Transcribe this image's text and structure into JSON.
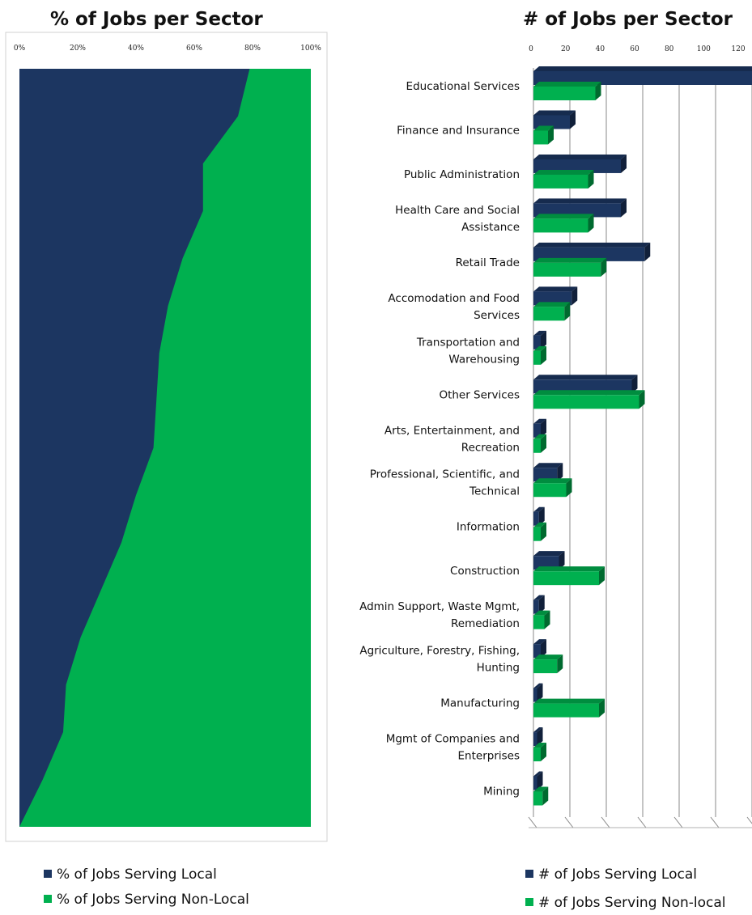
{
  "chart_data": [
    {
      "type": "area",
      "title": "% of Jobs per Sector",
      "orientation": "horizontal-stacked-100",
      "x_ticks": [
        "0%",
        "20%",
        "40%",
        "60%",
        "80%",
        "100%"
      ],
      "xlim": [
        0,
        100
      ],
      "categories": [
        "Educational Services",
        "Finance and Insurance",
        "Public Administration",
        "Health Care and Social Assistance",
        "Retail Trade",
        "Accomodation and Food Services",
        "Transportation and Warehousing",
        "Other Services",
        "Arts, Entertainment, and Recreation",
        "Professional, Scientific, and Technical",
        "Information",
        "Construction",
        "Admin Support, Waste Mgmt, Remediation",
        "Agriculture, Forestry, Fishing, Hunting",
        "Manufacturing",
        "Mgmt of Companies and Enterprises",
        "Mining"
      ],
      "series": [
        {
          "name": "% of Jobs Serving Local",
          "color": "#1c3661",
          "values": [
            79,
            75,
            63,
            63,
            56,
            51,
            48,
            47,
            46,
            40,
            35,
            28,
            21,
            16,
            15,
            8,
            0
          ]
        },
        {
          "name": "% of Jobs Serving Non-Local",
          "color": "#00b04f",
          "values": [
            21,
            25,
            37,
            37,
            44,
            49,
            52,
            53,
            54,
            60,
            65,
            72,
            79,
            84,
            85,
            92,
            100
          ]
        }
      ],
      "legend": "bottom"
    },
    {
      "type": "bar",
      "title": "# of Jobs per Sector",
      "orientation": "horizontal",
      "x_ticks": [
        "0",
        "20",
        "40",
        "60",
        "80",
        "100",
        "120"
      ],
      "xlim": [
        0,
        120
      ],
      "grid": true,
      "categories": [
        "Educational Services",
        "Finance and Insurance",
        "Public Administration",
        "Health Care and Social|Assistance",
        "Retail Trade",
        "Accomodation and Food|Services",
        "Transportation and|Warehousing",
        "Other Services",
        "Arts, Entertainment, and|Recreation",
        "Professional, Scientific, and|Technical",
        "Information",
        "Construction",
        "Admin Support, Waste Mgmt,|Remediation",
        "Agriculture, Forestry, Fishing,|Hunting",
        "Manufacturing",
        "Mgmt of Companies and|Enterprises",
        "Mining"
      ],
      "series": [
        {
          "name": "# of Jobs Serving Local",
          "color": "#1c3661",
          "values": [
            122,
            20,
            48,
            48,
            61,
            21,
            4,
            54,
            4,
            13,
            3,
            14,
            3,
            4,
            2,
            2,
            2
          ]
        },
        {
          "name": "# of Jobs Serving Non-local",
          "color": "#00b04f",
          "values": [
            34,
            8,
            30,
            30,
            37,
            17,
            4,
            58,
            4,
            18,
            4,
            36,
            6,
            13,
            36,
            4,
            5
          ]
        }
      ],
      "legend": "bottom"
    }
  ]
}
